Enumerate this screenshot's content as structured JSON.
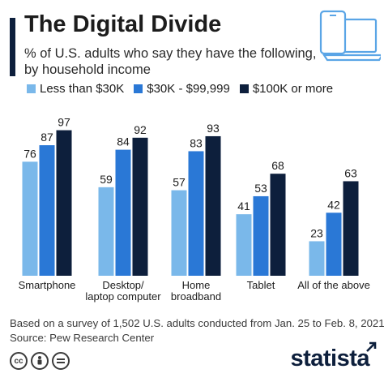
{
  "header": {
    "title": "The Digital Divide",
    "subtitle": "% of U.S. adults who say they have the following, by household income"
  },
  "legend": {
    "items": [
      {
        "label": "Less than $30K",
        "color": "#7ab8ea"
      },
      {
        "label": "$30K - $99,999",
        "color": "#2a78d6"
      },
      {
        "label": "$100K or more",
        "color": "#0d1f3c"
      }
    ]
  },
  "chart_data": {
    "type": "bar",
    "categories": [
      [
        "Smartphone"
      ],
      [
        "Desktop/",
        "laptop computer"
      ],
      [
        "Home",
        "broadband"
      ],
      [
        "Tablet"
      ],
      [
        "All of the above"
      ]
    ],
    "series": [
      {
        "name": "Less than $30K",
        "values": [
          76,
          59,
          57,
          41,
          23
        ],
        "color": "#7ab8ea"
      },
      {
        "name": "$30K - $99,999",
        "values": [
          87,
          84,
          83,
          53,
          42
        ],
        "color": "#2a78d6"
      },
      {
        "name": "$100K or more",
        "values": [
          97,
          92,
          93,
          68,
          63
        ],
        "color": "#0d1f3c"
      }
    ],
    "ylim": [
      0,
      100
    ],
    "grid": false,
    "legend_position": "top"
  },
  "footer": {
    "note": "Based on a survey of 1,502 U.S. adults conducted from Jan. 25 to Feb. 8, 2021",
    "source": "Source: Pew Research Center",
    "brand": "statista"
  }
}
